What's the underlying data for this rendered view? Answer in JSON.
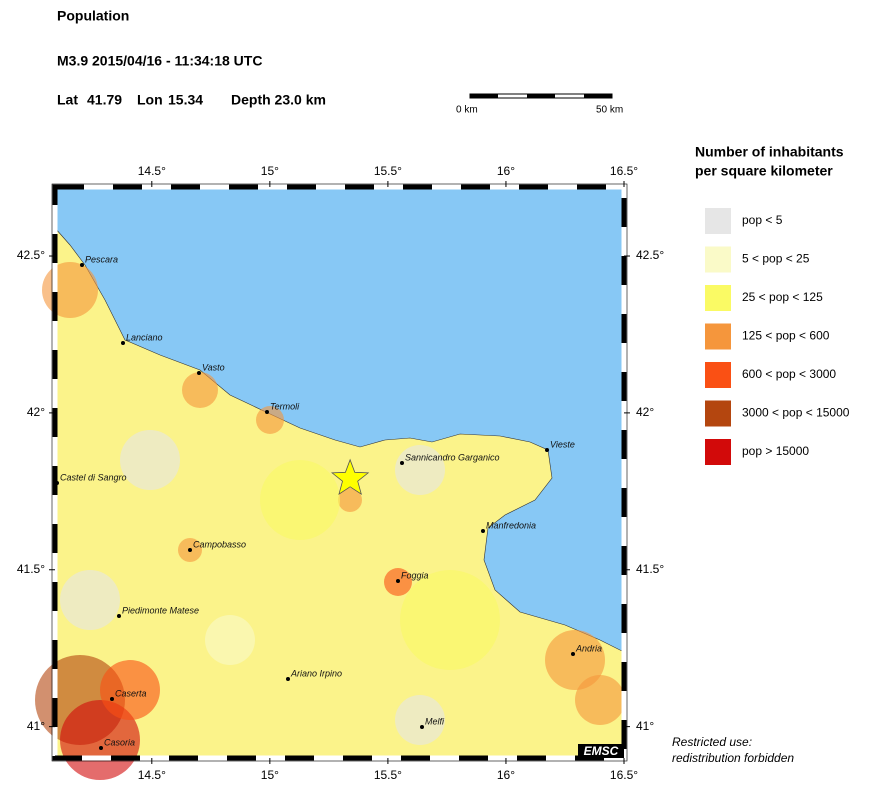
{
  "header": {
    "title": "Population",
    "event": "M3.9  2015/04/16 - 11:34:18 UTC",
    "lat_label": "Lat",
    "lat": 41.79,
    "lon_label": "Lon",
    "lon": 15.34,
    "depth": "Depth  23.0 km"
  },
  "scale_bar": {
    "start": "0 km",
    "end": "50 km"
  },
  "map": {
    "xlim": [
      14.09,
      16.5
    ],
    "ylim": [
      40.9,
      42.72
    ],
    "xticks": [
      {
        "value": 14.5,
        "label": "14.5°"
      },
      {
        "value": 15,
        "label": "15°"
      },
      {
        "value": 15.5,
        "label": "15.5°"
      },
      {
        "value": 16,
        "label": "16°"
      },
      {
        "value": 16.5,
        "label": "16.5°"
      }
    ],
    "yticks": [
      {
        "value": 41,
        "label": "41°"
      },
      {
        "value": 41.5,
        "label": "41.5°"
      },
      {
        "value": 42,
        "label": "42°"
      },
      {
        "value": 42.5,
        "label": "42.5°"
      }
    ],
    "sea_color": "#87c8f5",
    "land_color": "#fbf38a",
    "cities": [
      "Pescara",
      "Lanciano",
      "Vasto",
      "Termoli",
      "Castel di Sangro",
      "Campobasso",
      "Sannicandro Garganico",
      "Vieste",
      "Manfredonia",
      "Foggia",
      "Piedimonte Matese",
      "Ariano Irpino",
      "Caserta",
      "Andria",
      "Melfi",
      "Casoria"
    ],
    "logo": "EMSC"
  },
  "legend": {
    "title": [
      "Number of inhabitants",
      "per square kilometer"
    ],
    "items": [
      {
        "label": "pop < 5",
        "color": "#e6e6e6"
      },
      {
        "label": "5 < pop < 25",
        "color": "#fafac8"
      },
      {
        "label": "25 < pop < 125",
        "color": "#fafa64"
      },
      {
        "label": "125 < pop < 600",
        "color": "#f5963c"
      },
      {
        "label": "600 < pop < 3000",
        "color": "#fa5014"
      },
      {
        "label": "3000 < pop < 15000",
        "color": "#b4460f"
      },
      {
        "label": "pop > 15000",
        "color": "#d20a0a"
      }
    ]
  },
  "note": [
    "Restricted use:",
    "redistribution forbidden"
  ]
}
